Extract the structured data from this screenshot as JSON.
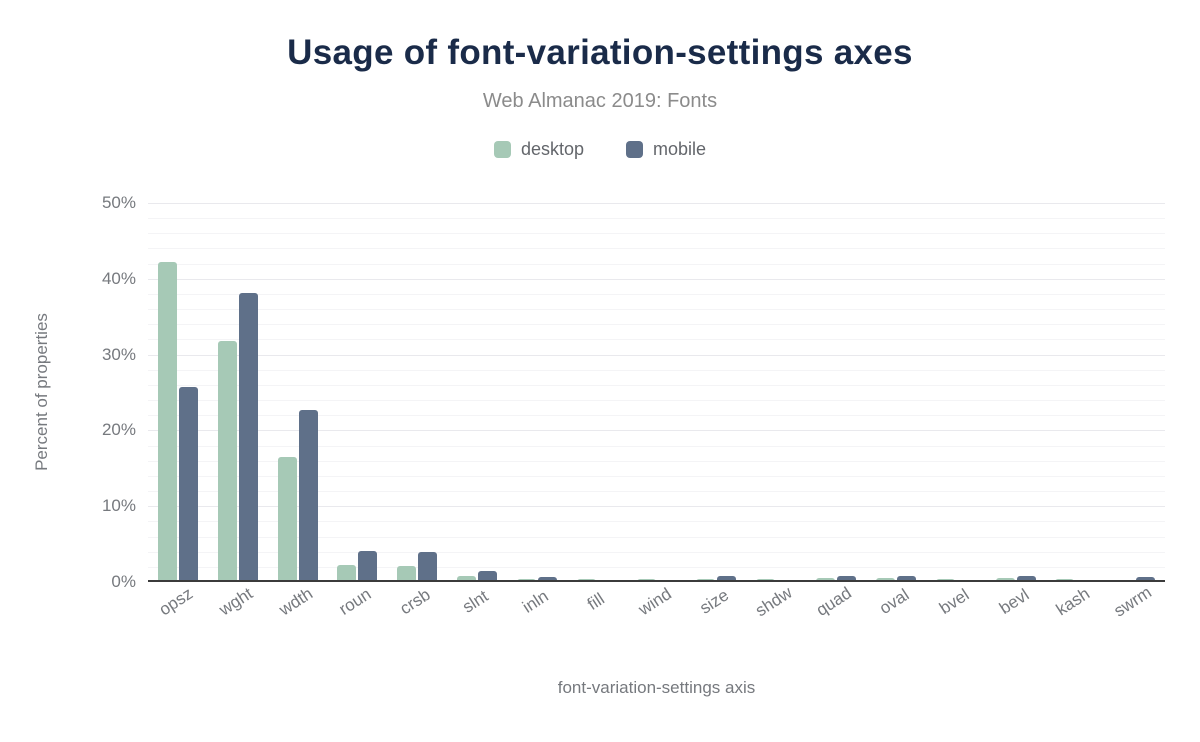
{
  "header": {
    "title": "Usage of font-variation-settings axes",
    "subtitle": "Web Almanac 2019: Fonts"
  },
  "chart_data": {
    "type": "bar",
    "title": "Usage of font-variation-settings axes",
    "subtitle": "Web Almanac 2019: Fonts",
    "xlabel": "font-variation-settings axis",
    "ylabel": "Percent of properties",
    "ylim": [
      0,
      50
    ],
    "grid": true,
    "legend_position": "top",
    "ytick_step_major": 10,
    "ytick_step_minor": 2,
    "ytick_labels": [
      "0%",
      "10%",
      "20%",
      "30%",
      "40%",
      "50%"
    ],
    "categories": [
      "opsz",
      "wght",
      "wdth",
      "roun",
      "crsb",
      "slnt",
      "inln",
      "fill",
      "wind",
      "size",
      "shdw",
      "quad",
      "oval",
      "bvel",
      "bevl",
      "kash",
      "swrm"
    ],
    "series": [
      {
        "name": "desktop",
        "color": "#a6c9b6",
        "values": [
          42.2,
          31.8,
          16.5,
          2.2,
          2.1,
          0.8,
          0.4,
          0.4,
          0.4,
          0.4,
          0.4,
          0.5,
          0.5,
          0.4,
          0.5,
          0.4,
          0.3
        ]
      },
      {
        "name": "mobile",
        "color": "#5f7089",
        "values": [
          25.7,
          38.1,
          22.7,
          4.1,
          4.0,
          1.4,
          0.7,
          0.1,
          0.1,
          0.8,
          0.1,
          0.8,
          0.8,
          0.1,
          0.8,
          0.1,
          0.6
        ]
      }
    ]
  },
  "colors": {
    "title_text": "#1a2b49",
    "subtitle_text": "#8b8b8b",
    "axis_text": "#76797e",
    "axis_line": "#3b3b3b",
    "grid_minor": "#f4f4f6",
    "grid_major": "#e9e9ed",
    "background": "#ffffff"
  }
}
